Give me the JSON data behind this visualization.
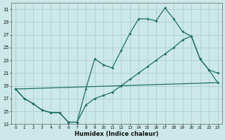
{
  "xlabel": "Humidex (Indice chaleur)",
  "background_color": "#cce8e8",
  "grid_color": "#aacfcf",
  "line_color": "#1e6e65",
  "xlim": [
    -0.5,
    23.5
  ],
  "ylim": [
    13,
    32
  ],
  "yticks": [
    13,
    15,
    17,
    19,
    21,
    23,
    25,
    27,
    29,
    31
  ],
  "xticks": [
    0,
    1,
    2,
    3,
    4,
    5,
    6,
    7,
    8,
    9,
    10,
    11,
    12,
    13,
    14,
    15,
    16,
    17,
    18,
    19,
    20,
    21,
    22,
    23
  ],
  "line1_x": [
    0,
    1,
    2,
    3,
    4,
    5,
    6,
    7,
    8,
    9,
    10,
    11,
    12,
    13,
    14,
    15,
    16,
    17,
    18,
    19,
    20,
    21,
    22,
    23
  ],
  "line1_y": [
    18.5,
    17.0,
    16.2,
    15.2,
    14.8,
    14.8,
    13.3,
    13.3,
    18.5,
    23.2,
    22.3,
    21.8,
    24.5,
    27.2,
    29.5,
    29.5,
    29.2,
    31.2,
    29.5,
    27.5,
    26.8,
    23.2,
    21.5,
    21.0
  ],
  "line2_x": [
    0,
    1,
    2,
    3,
    4,
    5,
    6,
    7,
    8,
    9,
    10,
    11,
    12,
    13,
    14,
    15,
    16,
    17,
    18,
    19,
    20,
    21,
    22,
    23
  ],
  "line2_y": [
    18.5,
    17.0,
    16.2,
    15.2,
    14.8,
    14.8,
    13.3,
    13.3,
    16.0,
    17.0,
    17.5,
    18.0,
    19.0,
    20.0,
    21.0,
    22.0,
    23.0,
    24.0,
    25.0,
    26.2,
    26.8,
    23.2,
    21.5,
    19.5
  ],
  "line3_x": [
    0,
    23
  ],
  "line3_y": [
    18.5,
    19.5
  ]
}
